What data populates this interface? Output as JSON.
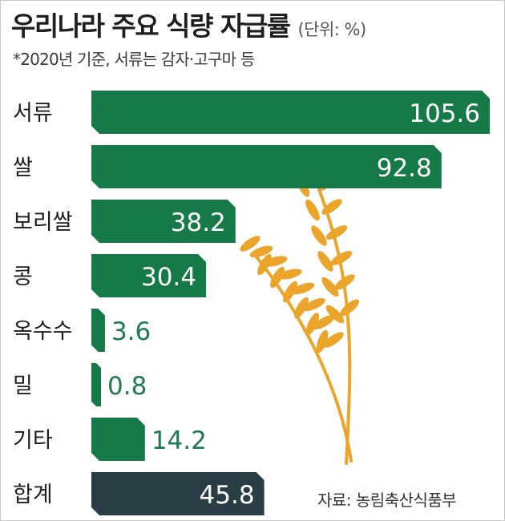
{
  "header": {
    "title": "우리나라 주요 식량 자급률",
    "unit": "(단위: %)",
    "note": "*2020년 기준, 서류는 감자·고구마 등"
  },
  "footer": {
    "source": "자료: 농림축산식품부"
  },
  "colors": {
    "bar": "#157a47",
    "total_bar": "#2b3d44",
    "value_outside": "#1f7a4f",
    "wheat": "#eba52a"
  },
  "chart_data": {
    "type": "bar",
    "orientation": "horizontal",
    "title": "우리나라 주요 식량 자급률",
    "unit": "%",
    "categories": [
      "서류",
      "쌀",
      "보리쌀",
      "콩",
      "옥수수",
      "밀",
      "기타",
      "합계"
    ],
    "values": [
      105.6,
      92.8,
      38.2,
      30.4,
      3.6,
      0.8,
      14.2,
      45.8
    ],
    "value_labels": [
      "105.6",
      "92.8",
      "38.2",
      "30.4",
      "3.6",
      "0.8",
      "14.2",
      "45.8"
    ],
    "highlight": [
      "합계"
    ],
    "xlim": [
      0,
      105.6
    ],
    "grid": false,
    "legend": "none",
    "decoration": "wheat-stalk-illustration"
  }
}
